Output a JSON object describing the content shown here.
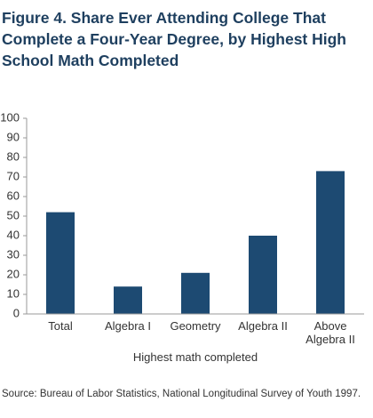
{
  "chart_data": {
    "type": "bar",
    "title": "Figure 4. Share Ever Attending College That Complete a Four-Year Degree, by Highest High School Math Completed",
    "categories": [
      "Total",
      "Algebra I",
      "Geometry",
      "Algebra II",
      "Above Algebra II"
    ],
    "values": [
      52,
      14,
      21,
      40,
      73
    ],
    "color": "#1d4a72",
    "ylim": [
      0,
      100
    ],
    "yticks": [
      0,
      10,
      20,
      30,
      40,
      50,
      60,
      70,
      80,
      90,
      100
    ],
    "grid": false,
    "x_label": "Highest math completed",
    "source": "Source: Bureau of Labor Statistics, National Longitudinal Survey of Youth 1997."
  }
}
